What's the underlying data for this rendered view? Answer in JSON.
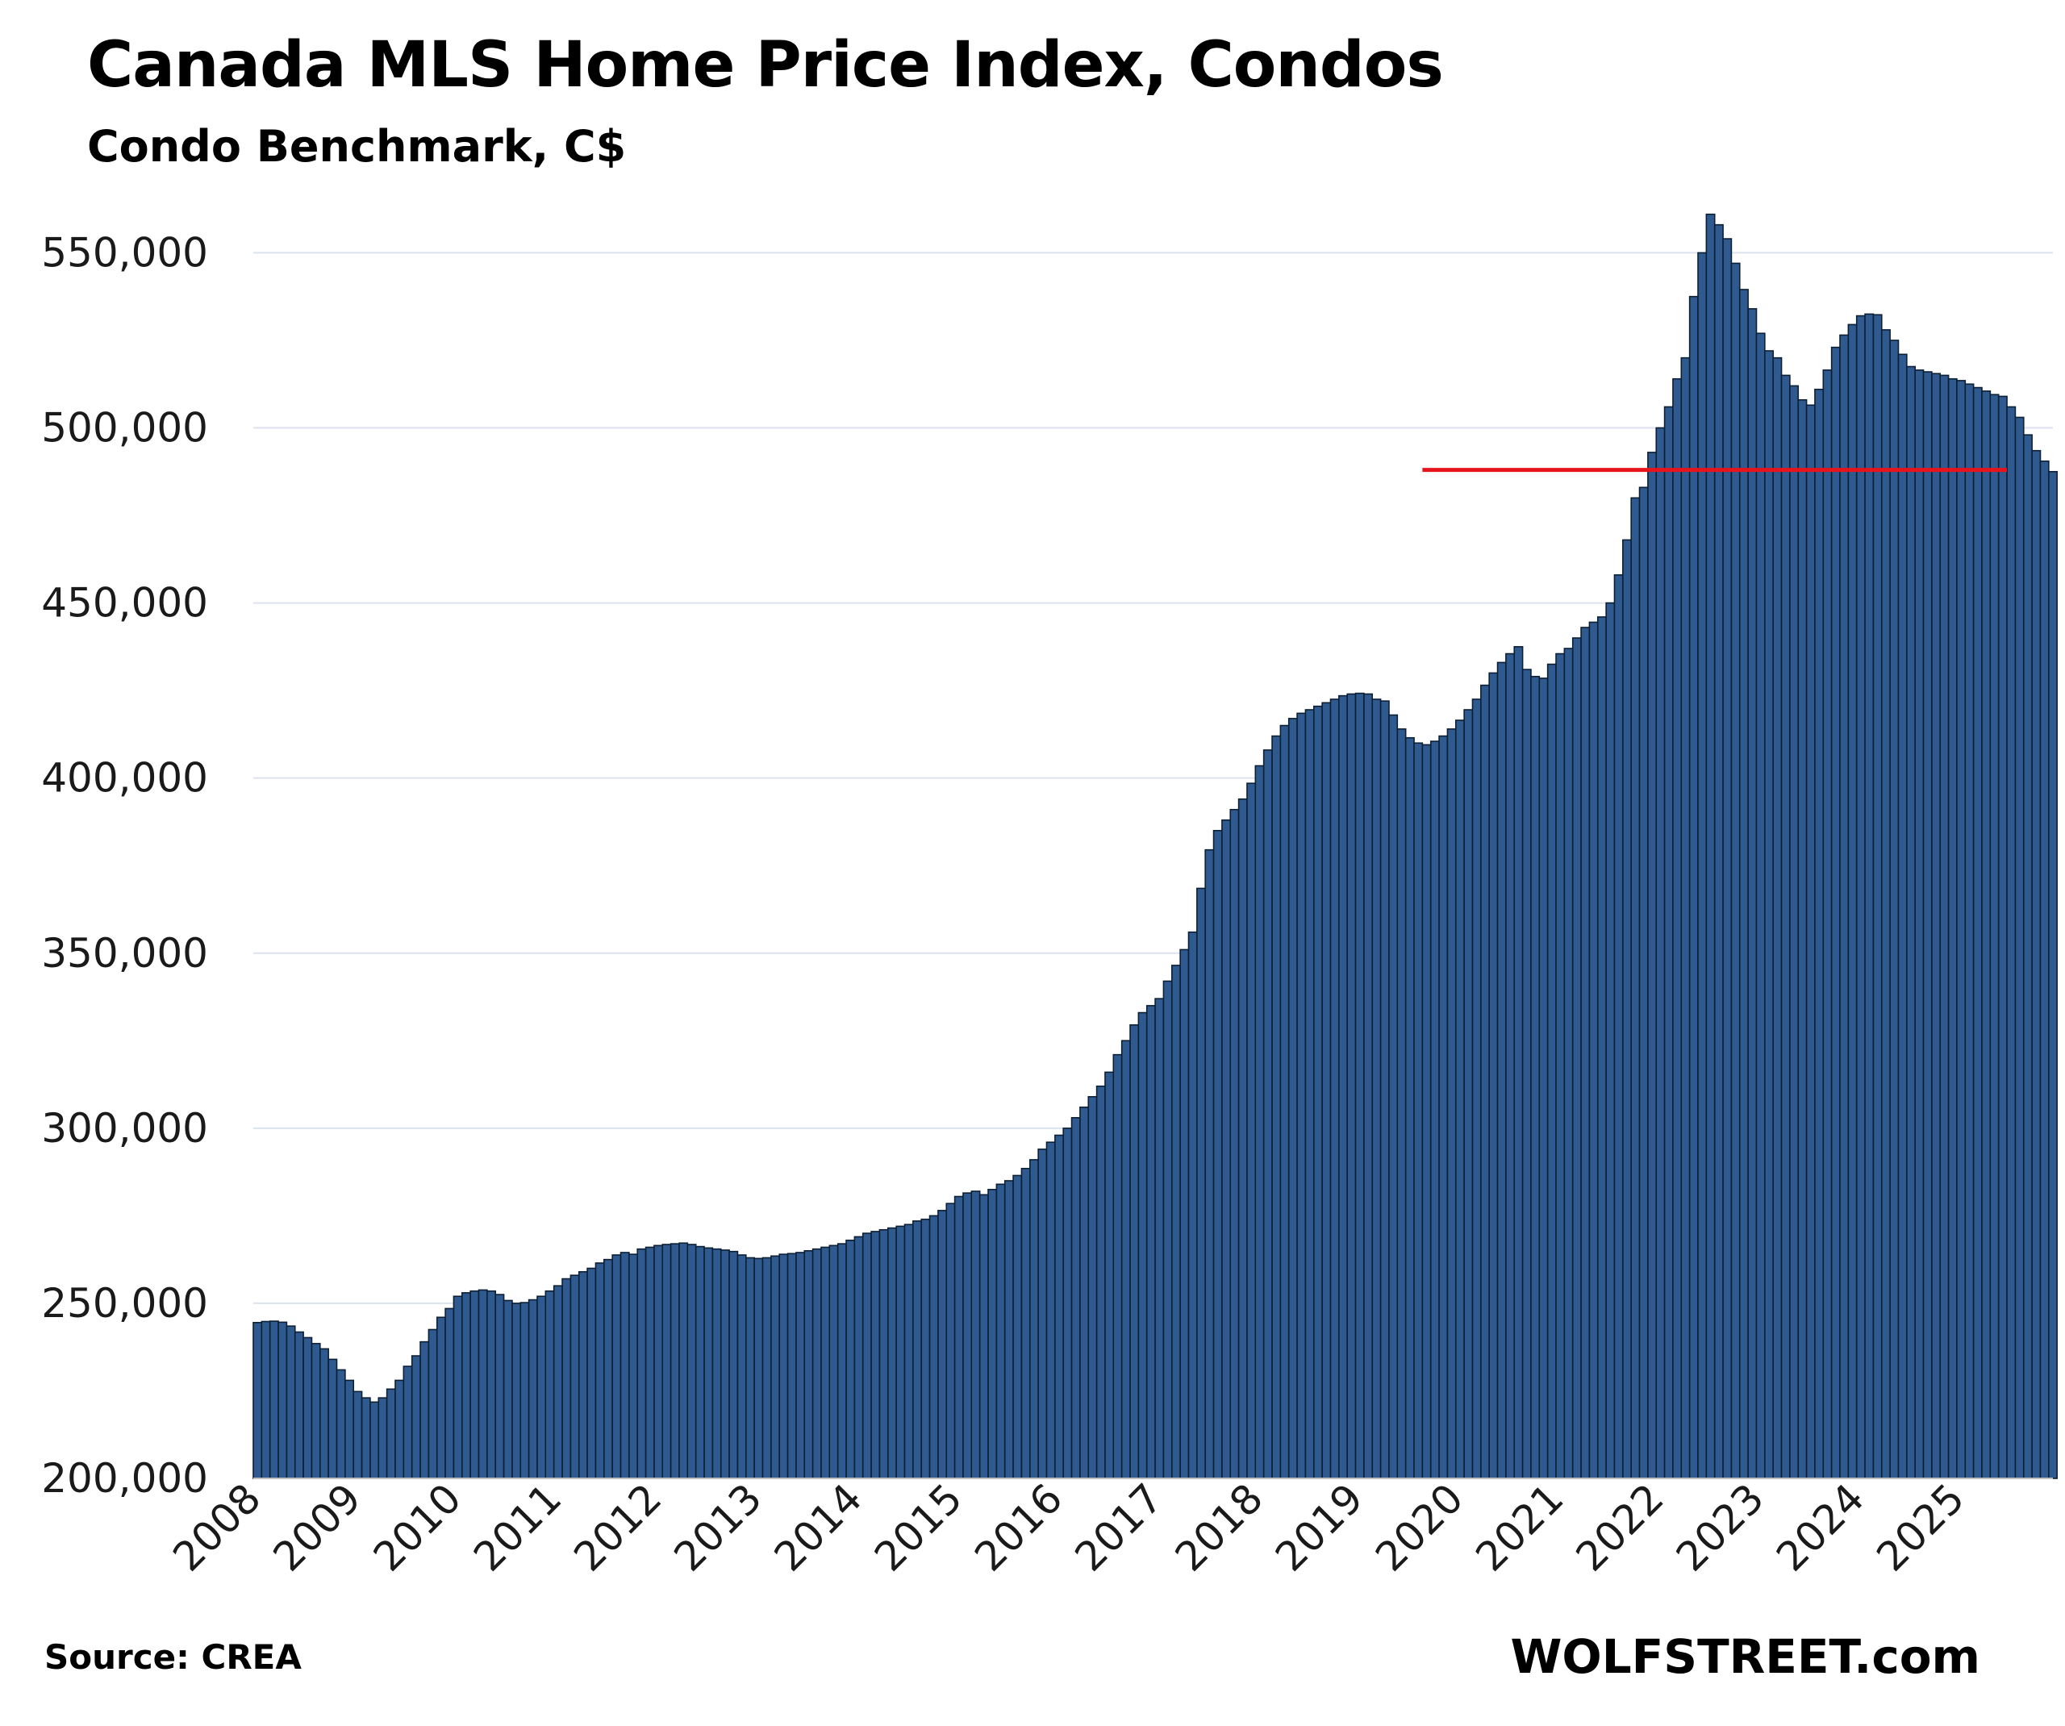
{
  "header": {
    "title": "Canada MLS Home Price Index, Condos",
    "subtitle": "Condo Benchmark, C$"
  },
  "footer": {
    "source": "Source: CREA",
    "brand": "WOLFSTREET.com"
  },
  "colors": {
    "bar_fill": "#2F5A90",
    "bar_stroke": "#0d1f33",
    "reference_line": "#E8141B",
    "gridline": "#dbe3ee"
  },
  "chart_data": {
    "type": "bar",
    "title": "Canada MLS Home Price Index, Condos",
    "subtitle": "Condo Benchmark, C$",
    "xlabel": "",
    "ylabel": "",
    "ylim": [
      200000,
      560000
    ],
    "y_ticks": [
      200000,
      250000,
      300000,
      350000,
      400000,
      450000,
      500000,
      550000
    ],
    "y_tick_labels": [
      "200,000",
      "250,000",
      "300,000",
      "350,000",
      "400,000",
      "450,000",
      "500,000",
      "550,000"
    ],
    "x_tick_labels": [
      "2008",
      "2009",
      "2010",
      "2011",
      "2012",
      "2013",
      "2014",
      "2015",
      "2016",
      "2017",
      "2018",
      "2019",
      "2020",
      "2021",
      "2022",
      "2023",
      "2024",
      "2025"
    ],
    "start": "2008-01",
    "frequency": "monthly",
    "grid": true,
    "legend": "none",
    "reference_line": {
      "value": 488000,
      "from": "2019-09",
      "to": "2025-06",
      "color": "#E8141B"
    },
    "values": [
      244500,
      244800,
      244900,
      244600,
      243500,
      241800,
      240200,
      238500,
      237000,
      234000,
      231000,
      228000,
      224800,
      223000,
      221800,
      223000,
      225500,
      228000,
      232000,
      235000,
      239000,
      242500,
      246000,
      248500,
      252000,
      253000,
      253500,
      253800,
      253500,
      252500,
      250800,
      250000,
      250200,
      251000,
      252000,
      253500,
      255000,
      257000,
      258000,
      259000,
      260000,
      261500,
      262500,
      263800,
      264500,
      264000,
      265500,
      266000,
      266500,
      266800,
      267000,
      267200,
      266800,
      266200,
      265800,
      265500,
      265200,
      264800,
      263800,
      263000,
      262800,
      263000,
      263500,
      264000,
      264200,
      264500,
      265000,
      265500,
      266000,
      266500,
      267000,
      268000,
      269000,
      270000,
      270500,
      271000,
      271500,
      272000,
      272500,
      273500,
      274000,
      275000,
      276500,
      278500,
      280500,
      281500,
      282000,
      281000,
      282500,
      284000,
      285000,
      286500,
      288500,
      291000,
      294000,
      296000,
      298000,
      300000,
      303000,
      306000,
      309000,
      312000,
      316000,
      321000,
      325000,
      329500,
      333000,
      335000,
      337000,
      342000,
      346500,
      351000,
      356000,
      368500,
      379500,
      385000,
      388000,
      391000,
      394000,
      398500,
      403500,
      408000,
      412000,
      415000,
      417000,
      418500,
      419500,
      420500,
      421500,
      422500,
      423500,
      424000,
      424200,
      424000,
      422500,
      422000,
      418000,
      414000,
      411500,
      410000,
      409500,
      410500,
      412000,
      414000,
      416500,
      419500,
      422500,
      426500,
      430000,
      433000,
      435500,
      437500,
      431000,
      429000,
      428500,
      432500,
      435500,
      437000,
      440000,
      443000,
      444500,
      446000,
      450000,
      458000,
      468000,
      480000,
      483000,
      493000,
      500000,
      506000,
      514000,
      520000,
      537500,
      550000,
      561000,
      558000,
      554000,
      547000,
      539500,
      534000,
      527000,
      522000,
      520000,
      515000,
      512000,
      508000,
      506500,
      511000,
      516500,
      523000,
      526500,
      529500,
      532000,
      532500,
      532300,
      528000,
      525000,
      521000,
      517500,
      516500,
      516000,
      515500,
      515000,
      514000,
      513500,
      512500,
      511500,
      510500,
      509500,
      509000,
      506000,
      503000,
      498000,
      493500,
      490500,
      487500
    ]
  }
}
